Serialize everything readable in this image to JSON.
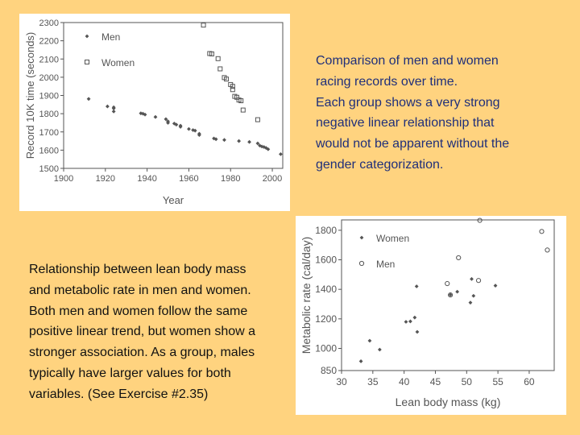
{
  "colors": {
    "background": "#FFD37F",
    "caption_top": "#1f2f7a",
    "caption_bottom": "#111111",
    "plot_ink": "#555555"
  },
  "captions": {
    "top": "Comparison of men and women\nracing records over time.\nEach group shows a very strong\nnegative linear relationship that\nwould not be apparent without the\ngender categorization.",
    "bottom": "Relationship between lean body mass\nand metabolic rate in men and women.\nBoth men and women follow the same\npositive linear trend, but women show a\nstronger association. As a group, males\ntypically have larger values for both\nvariables. (See Exercise #2.35)"
  },
  "chart_data": [
    {
      "type": "scatter",
      "xlabel": "Year",
      "ylabel": "Record 10K time (seconds)",
      "xlim": [
        1900,
        2005
      ],
      "ylim": [
        1500,
        2300
      ],
      "xticks": [
        "1900",
        "1920",
        "1940",
        "1960",
        "1980",
        "2000"
      ],
      "yticks": [
        "1500",
        "1600",
        "1700",
        "1800",
        "1900",
        "2000",
        "2100",
        "2200",
        "2300"
      ],
      "legend_position": "top-left",
      "series": [
        {
          "name": "Men",
          "marker": "dot",
          "points": [
            [
              1912,
              1881
            ],
            [
              1921,
              1840
            ],
            [
              1924,
              1835
            ],
            [
              1924,
              1812
            ],
            [
              1924,
              1829
            ],
            [
              1937,
              1802
            ],
            [
              1938,
              1800
            ],
            [
              1939,
              1795
            ],
            [
              1944,
              1782
            ],
            [
              1949,
              1770
            ],
            [
              1950,
              1758
            ],
            [
              1950,
              1750
            ],
            [
              1953,
              1746
            ],
            [
              1954,
              1740
            ],
            [
              1956,
              1734
            ],
            [
              1956,
              1728
            ],
            [
              1960,
              1716
            ],
            [
              1962,
              1710
            ],
            [
              1963,
              1707
            ],
            [
              1965,
              1690
            ],
            [
              1965,
              1683
            ],
            [
              1972,
              1664
            ],
            [
              1973,
              1660
            ],
            [
              1977,
              1656
            ],
            [
              1984,
              1650
            ],
            [
              1989,
              1645
            ],
            [
              1993,
              1637
            ],
            [
              1994,
              1625
            ],
            [
              1995,
              1620
            ],
            [
              1996,
              1617
            ],
            [
              1997,
              1612
            ],
            [
              1998,
              1605
            ],
            [
              2004,
              1578
            ]
          ]
        },
        {
          "name": "Women",
          "marker": "open-square",
          "points": [
            [
              1967,
              2286
            ],
            [
              1970,
              2130
            ],
            [
              1971,
              2128
            ],
            [
              1974,
              2102
            ],
            [
              1975,
              2046
            ],
            [
              1977,
              1998
            ],
            [
              1978,
              1990
            ],
            [
              1980,
              1960
            ],
            [
              1981,
              1950
            ],
            [
              1981,
              1932
            ],
            [
              1982,
              1895
            ],
            [
              1983,
              1890
            ],
            [
              1984,
              1875
            ],
            [
              1985,
              1871
            ],
            [
              1986,
              1820
            ],
            [
              1993,
              1767
            ]
          ]
        }
      ]
    },
    {
      "type": "scatter",
      "xlabel": "Lean body mass (kg)",
      "ylabel": "Metabolic rate (cal/day)",
      "xlim": [
        30,
        64
      ],
      "ylim": [
        850,
        1870
      ],
      "xticks": [
        "30",
        "35",
        "40",
        "45",
        "50",
        "55",
        "60"
      ],
      "yticks": [
        "850",
        "1000",
        "1200",
        "1400",
        "1600",
        "1800"
      ],
      "legend_position": "top-left",
      "series": [
        {
          "name": "Women",
          "marker": "dot",
          "points": [
            [
              33.1,
              913
            ],
            [
              34.5,
              1052
            ],
            [
              36.1,
              992
            ],
            [
              40.3,
              1180
            ],
            [
              41.0,
              1183
            ],
            [
              41.7,
              1209
            ],
            [
              42.0,
              1420
            ],
            [
              42.1,
              1112
            ],
            [
              47.4,
              1363
            ],
            [
              48.5,
              1384
            ],
            [
              50.6,
              1310
            ],
            [
              54.6,
              1425
            ],
            [
              51.1,
              1356
            ],
            [
              50.8,
              1470
            ]
          ]
        },
        {
          "name": "Men",
          "marker": "open-circle",
          "points": [
            [
              62.0,
              1792
            ],
            [
              62.9,
              1666
            ],
            [
              47.4,
              1362
            ],
            [
              48.7,
              1614
            ],
            [
              51.9,
              1460
            ],
            [
              46.9,
              1439
            ],
            [
              52.1,
              1867
            ]
          ]
        }
      ]
    }
  ]
}
